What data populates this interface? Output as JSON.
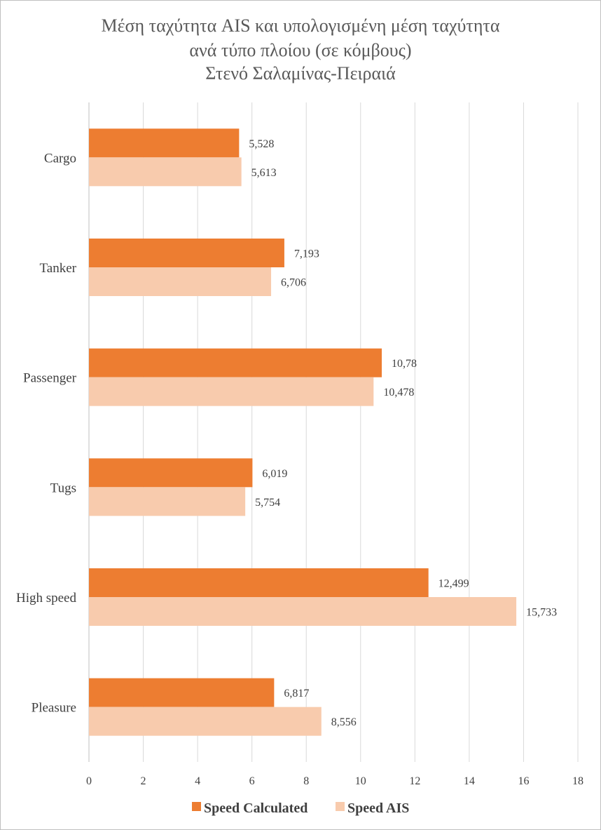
{
  "chart_data": {
    "type": "bar",
    "orientation": "horizontal",
    "title_lines": [
      "Μέση ταχύτητα AIS και υπολογισμένη μέση ταχύτητα",
      "ανά τύπο πλοίου (σε κόμβους)",
      "Στενό Σαλαμίνας-Πειραιά"
    ],
    "categories": [
      "Cargo",
      "Tanker",
      "Passenger",
      "Tugs",
      "High speed",
      "Pleasure"
    ],
    "series": [
      {
        "name": "Speed Calculated",
        "color": "#ed7d31",
        "values": [
          5.528,
          7.193,
          10.78,
          6.019,
          12.499,
          6.817
        ],
        "labels": [
          "5,528",
          "7,193",
          "10,78",
          "6,019",
          "12,499",
          "6,817"
        ]
      },
      {
        "name": "Speed AIS",
        "color": "#f8cbad",
        "values": [
          5.613,
          6.706,
          10.478,
          5.754,
          15.733,
          8.556
        ],
        "labels": [
          "5,613",
          "6,706",
          "10,478",
          "5,754",
          "15,733",
          "8,556"
        ]
      }
    ],
    "xlim": [
      0,
      18
    ],
    "xticks": [
      0,
      2,
      4,
      6,
      8,
      10,
      12,
      14,
      16,
      18
    ],
    "xtick_labels": [
      "0",
      "2",
      "4",
      "6",
      "8",
      "10",
      "12",
      "14",
      "16",
      "18"
    ],
    "grid": "vertical",
    "legend_position": "bottom"
  }
}
